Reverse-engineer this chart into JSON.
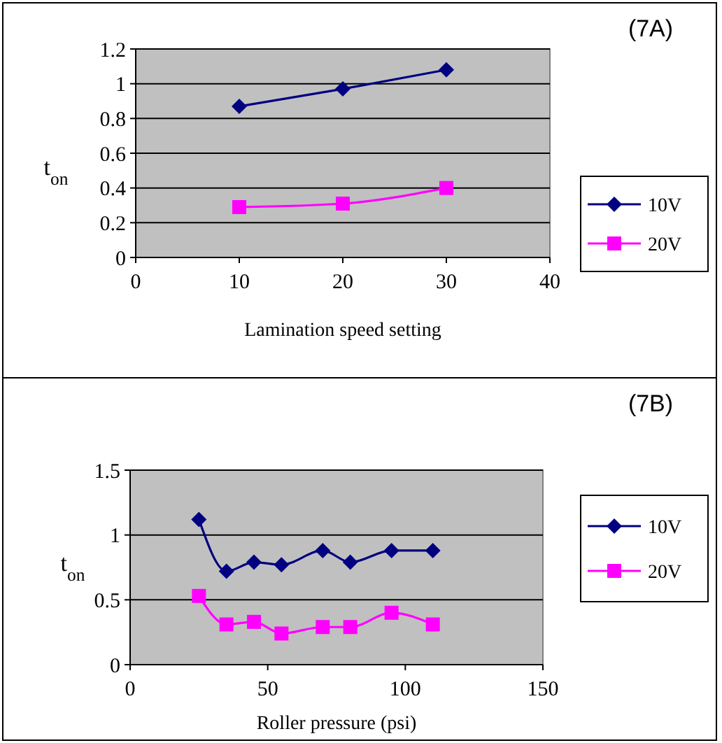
{
  "chart_data": [
    {
      "type": "line",
      "annotations": [
        "(7A)"
      ],
      "xlabel": "Lamination speed setting",
      "ylabel": "t$_{on}$",
      "x": [
        10,
        20,
        30
      ],
      "xlim": [
        0,
        40
      ],
      "xticks": [
        0,
        10,
        20,
        30,
        40
      ],
      "ylim": [
        0,
        1.2
      ],
      "yticks": [
        0,
        0.2,
        0.4,
        0.6,
        0.8,
        1,
        1.2
      ],
      "grid": "y",
      "legend": "right",
      "series": [
        {
          "name": "10V",
          "color": "#000080",
          "marker": "diamond",
          "values": [
            0.87,
            0.97,
            1.08
          ]
        },
        {
          "name": "20V",
          "color": "#ff00ff",
          "marker": "square",
          "values": [
            0.29,
            0.31,
            0.4
          ]
        }
      ]
    },
    {
      "type": "line",
      "annotations": [
        "(7B)"
      ],
      "xlabel": "Roller pressure (psi)",
      "ylabel": "t$_{on}$",
      "x": [
        25,
        35,
        45,
        55,
        70,
        80,
        95,
        110
      ],
      "xlim": [
        0,
        150
      ],
      "xticks": [
        0,
        50,
        100,
        150
      ],
      "ylim": [
        0,
        1.5
      ],
      "yticks": [
        0,
        0.5,
        1,
        1.5
      ],
      "grid": "y",
      "legend": "right",
      "series": [
        {
          "name": "10V",
          "color": "#000080",
          "marker": "diamond",
          "values": [
            1.12,
            0.72,
            0.79,
            0.77,
            0.88,
            0.79,
            0.88,
            0.88
          ]
        },
        {
          "name": "20V",
          "color": "#ff00ff",
          "marker": "square",
          "values": [
            0.53,
            0.31,
            0.33,
            0.24,
            0.29,
            0.29,
            0.4,
            0.31
          ]
        }
      ]
    }
  ]
}
